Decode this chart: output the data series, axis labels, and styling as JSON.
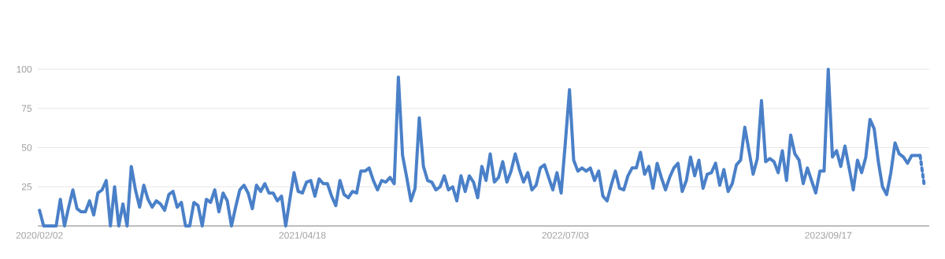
{
  "chart_data": {
    "type": "line",
    "categories": [
      "2020/02/02",
      null,
      null,
      null,
      null,
      null,
      null,
      null,
      null,
      null,
      null,
      null,
      null,
      null,
      null,
      null,
      null,
      null,
      null,
      null,
      null,
      null,
      null,
      null,
      null,
      null,
      null,
      null,
      null,
      null,
      null,
      null,
      null,
      null,
      null,
      null,
      null,
      null,
      null,
      null,
      null,
      null,
      null,
      null,
      null,
      null,
      null,
      null,
      null,
      null,
      null,
      null,
      null,
      null,
      null,
      null,
      null,
      null,
      null,
      null,
      null,
      null,
      null,
      "2021/04/18",
      null,
      null,
      null,
      null,
      null,
      null,
      null,
      null,
      null,
      null,
      null,
      null,
      null,
      null,
      null,
      null,
      null,
      null,
      null,
      null,
      null,
      null,
      null,
      null,
      null,
      null,
      null,
      null,
      null,
      null,
      null,
      null,
      null,
      null,
      null,
      null,
      null,
      null,
      null,
      null,
      null,
      null,
      null,
      null,
      null,
      null,
      null,
      null,
      null,
      null,
      null,
      null,
      null,
      null,
      null,
      null,
      null,
      null,
      null,
      null,
      null,
      null,
      "2022/07/03",
      null,
      null,
      null,
      null,
      null,
      null,
      null,
      null,
      null,
      null,
      null,
      null,
      null,
      null,
      null,
      null,
      null,
      null,
      null,
      null,
      null,
      null,
      null,
      null,
      null,
      null,
      null,
      null,
      null,
      null,
      null,
      null,
      null,
      null,
      null,
      null,
      null,
      null,
      null,
      null,
      null,
      null,
      null,
      null,
      null,
      null,
      null,
      null,
      null,
      null,
      null,
      null,
      null,
      null,
      null,
      null,
      null,
      null,
      null,
      null,
      null,
      null,
      "2023/09/17",
      null,
      null,
      null,
      null,
      null,
      null,
      null,
      null,
      null,
      null,
      null,
      null,
      null,
      null,
      null,
      null,
      null,
      null,
      null,
      null,
      null,
      null,
      null
    ],
    "series": [
      {
        "color": "#4a80c8",
        "line_style": "solid",
        "values": [
          10,
          0,
          0,
          0,
          0,
          17,
          0,
          12,
          23,
          11,
          9,
          9,
          16,
          7,
          21,
          23,
          29,
          0,
          25,
          0,
          14,
          0,
          38,
          23,
          12,
          26,
          17,
          12,
          16,
          14,
          10,
          20,
          22,
          12,
          15,
          0,
          0,
          15,
          13,
          0,
          17,
          15,
          23,
          9,
          21,
          16,
          0,
          12,
          23,
          26,
          21,
          11,
          26,
          22,
          27,
          21,
          21,
          16,
          19,
          0,
          17,
          34,
          22,
          21,
          28,
          29,
          19,
          30,
          27,
          27,
          19,
          13,
          29,
          20,
          18,
          22,
          21,
          35,
          35,
          37,
          29,
          23,
          29,
          28,
          31,
          27,
          95,
          45,
          31,
          16,
          24,
          69,
          38,
          29,
          28,
          23,
          25,
          32,
          23,
          25,
          16,
          32,
          22,
          32,
          28,
          18,
          38,
          29,
          46,
          28,
          31,
          41,
          28,
          35,
          46,
          36,
          28,
          34,
          23,
          26,
          37,
          39,
          31,
          23,
          34,
          21,
          53,
          87,
          42,
          35,
          37,
          35,
          37,
          29,
          35,
          19,
          16,
          26,
          35,
          24,
          23,
          32,
          37,
          37,
          47,
          33,
          38,
          24,
          40,
          31,
          23,
          31,
          37,
          40,
          22,
          29,
          44,
          32,
          42,
          24,
          33,
          34,
          40,
          26,
          36,
          22,
          27,
          39,
          42,
          63,
          48,
          33,
          43,
          80,
          41,
          43,
          41,
          34,
          48,
          29,
          58,
          46,
          42,
          27,
          37,
          29,
          21,
          35,
          35,
          100,
          44,
          48,
          38,
          51,
          37,
          23,
          42,
          34,
          44,
          68,
          62,
          41,
          25,
          20,
          34,
          53,
          46,
          44,
          40,
          45,
          45,
          45,
          null
        ]
      },
      {
        "color": "#4a80c8",
        "line_style": "dotted",
        "values": [
          null,
          null,
          null,
          null,
          null,
          null,
          null,
          null,
          null,
          null,
          null,
          null,
          null,
          null,
          null,
          null,
          null,
          null,
          null,
          null,
          null,
          null,
          null,
          null,
          null,
          null,
          null,
          null,
          null,
          null,
          null,
          null,
          null,
          null,
          null,
          null,
          null,
          null,
          null,
          null,
          null,
          null,
          null,
          null,
          null,
          null,
          null,
          null,
          null,
          null,
          null,
          null,
          null,
          null,
          null,
          null,
          null,
          null,
          null,
          null,
          null,
          null,
          null,
          null,
          null,
          null,
          null,
          null,
          null,
          null,
          null,
          null,
          null,
          null,
          null,
          null,
          null,
          null,
          null,
          null,
          null,
          null,
          null,
          null,
          null,
          null,
          null,
          null,
          null,
          null,
          null,
          null,
          null,
          null,
          null,
          null,
          null,
          null,
          null,
          null,
          null,
          null,
          null,
          null,
          null,
          null,
          null,
          null,
          null,
          null,
          null,
          null,
          null,
          null,
          null,
          null,
          null,
          null,
          null,
          null,
          null,
          null,
          null,
          null,
          null,
          null,
          null,
          null,
          null,
          null,
          null,
          null,
          null,
          null,
          null,
          null,
          null,
          null,
          null,
          null,
          null,
          null,
          null,
          null,
          null,
          null,
          null,
          null,
          null,
          null,
          null,
          null,
          null,
          null,
          null,
          null,
          null,
          null,
          null,
          null,
          null,
          null,
          null,
          null,
          null,
          null,
          null,
          null,
          null,
          null,
          null,
          null,
          null,
          null,
          null,
          null,
          null,
          null,
          null,
          null,
          null,
          null,
          null,
          null,
          null,
          null,
          null,
          null,
          null,
          null,
          null,
          null,
          null,
          null,
          null,
          null,
          null,
          null,
          null,
          null,
          null,
          null,
          null,
          null,
          null,
          null,
          null,
          null,
          null,
          null,
          null,
          45,
          26
        ]
      }
    ],
    "ylim": [
      0,
      100
    ],
    "yticks": [
      25,
      50,
      75,
      100
    ],
    "grid": "y"
  }
}
